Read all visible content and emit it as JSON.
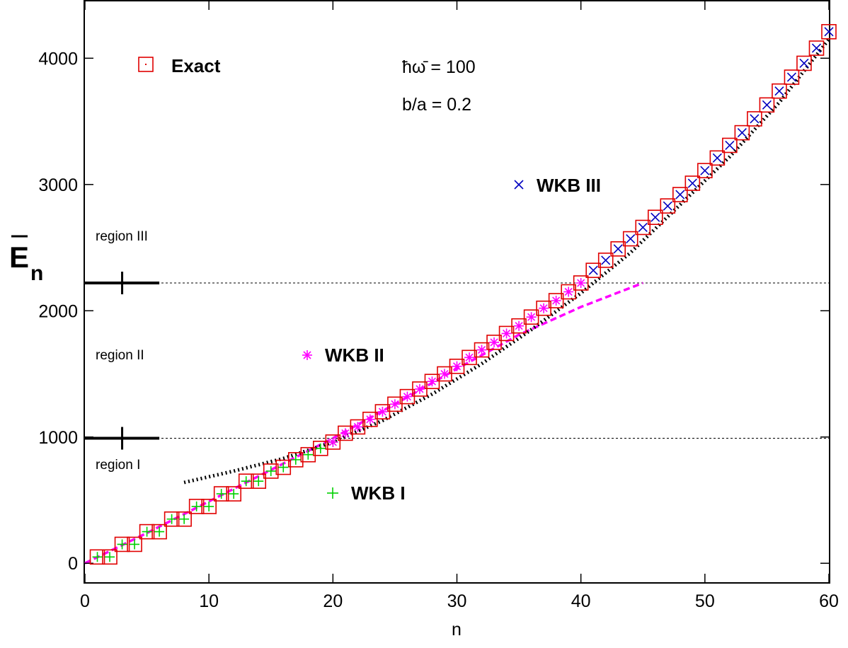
{
  "chart_data": {
    "type": "scatter",
    "title": "",
    "xlabel": "n",
    "ylabel": "E",
    "ylabel_subscript": "n",
    "xlim": [
      0,
      60
    ],
    "ylim": [
      -150,
      4450
    ],
    "x_ticks": [
      0,
      10,
      20,
      30,
      40,
      50,
      60
    ],
    "y_ticks": [
      0,
      1000,
      2000,
      3000,
      4000
    ],
    "x_tick_labels": [
      "0",
      "10",
      "20",
      "30",
      "40",
      "50",
      "60"
    ],
    "y_tick_labels": [
      "0",
      "1000",
      "2000",
      "3000",
      "4000"
    ],
    "grid": false,
    "legend_position": "inside",
    "parameters": [
      "ħω̄ = 100",
      "b/a = 0.2"
    ],
    "regions": {
      "boundaries": [
        990,
        2220
      ],
      "labels": [
        "region I",
        "region II",
        "region III"
      ],
      "label_y": [
        700,
        1600,
        2600
      ]
    },
    "series": [
      {
        "name": "Exact",
        "marker": "square",
        "color": "#e00000",
        "x": [
          1,
          2,
          3,
          4,
          5,
          6,
          7,
          8,
          9,
          10,
          11,
          12,
          13,
          14,
          15,
          16,
          17,
          18,
          19,
          20,
          21,
          22,
          23,
          24,
          25,
          26,
          27,
          28,
          29,
          30,
          31,
          32,
          33,
          34,
          35,
          36,
          37,
          38,
          39,
          40,
          41,
          42,
          43,
          44,
          45,
          46,
          47,
          48,
          49,
          50,
          51,
          52,
          53,
          54,
          55,
          56,
          57,
          58,
          59,
          60
        ],
        "y": [
          50,
          50,
          150,
          150,
          250,
          250,
          350,
          350,
          450,
          450,
          550,
          550,
          650,
          650,
          730,
          760,
          820,
          860,
          910,
          960,
          1030,
          1080,
          1140,
          1200,
          1260,
          1320,
          1380,
          1440,
          1500,
          1560,
          1630,
          1690,
          1750,
          1820,
          1880,
          1950,
          2020,
          2080,
          2150,
          2220,
          2320,
          2400,
          2490,
          2570,
          2660,
          2740,
          2830,
          2920,
          3010,
          3110,
          3210,
          3310,
          3410,
          3520,
          3630,
          3740,
          3850,
          3960,
          4080,
          4210
        ]
      },
      {
        "name": "WKB I",
        "marker": "plus",
        "color": "#00d000",
        "x": [
          1,
          2,
          3,
          4,
          5,
          6,
          7,
          8,
          9,
          10,
          11,
          12,
          13,
          14,
          15,
          16,
          17,
          18,
          19,
          20
        ],
        "y": [
          50,
          50,
          150,
          150,
          250,
          250,
          350,
          350,
          450,
          450,
          550,
          550,
          650,
          650,
          730,
          760,
          820,
          860,
          910,
          960
        ]
      },
      {
        "name": "WKB II",
        "marker": "star",
        "color": "#ff00ff",
        "x": [
          20,
          21,
          22,
          23,
          24,
          25,
          26,
          27,
          28,
          29,
          30,
          31,
          32,
          33,
          34,
          35,
          36,
          37,
          38,
          39,
          40
        ],
        "y": [
          960,
          1030,
          1080,
          1140,
          1200,
          1260,
          1320,
          1380,
          1440,
          1500,
          1560,
          1630,
          1690,
          1750,
          1820,
          1880,
          1950,
          2020,
          2080,
          2150,
          2220
        ]
      },
      {
        "name": "WKB III",
        "marker": "cross",
        "color": "#0000c0",
        "x": [
          41,
          42,
          43,
          44,
          45,
          46,
          47,
          48,
          49,
          50,
          51,
          52,
          53,
          54,
          55,
          56,
          57,
          58,
          59,
          60
        ],
        "y": [
          2320,
          2400,
          2490,
          2570,
          2660,
          2740,
          2830,
          2920,
          3010,
          3110,
          3210,
          3310,
          3410,
          3520,
          3630,
          3740,
          3850,
          3960,
          4080,
          4210
        ]
      }
    ],
    "curves": [
      {
        "style": "dashed",
        "color": "#ff00ff",
        "x": [
          0,
          5,
          10,
          15,
          20,
          25,
          30,
          35,
          40,
          45
        ],
        "y": [
          0,
          240,
          490,
          740,
          990,
          1260,
          1540,
          1810,
          2030,
          2220
        ]
      },
      {
        "style": "dotted",
        "color": "#000000",
        "x": [
          8,
          12,
          16,
          20,
          24,
          28,
          32,
          36,
          40,
          44,
          48,
          52,
          56,
          60
        ],
        "y": [
          640,
          730,
          830,
          960,
          1130,
          1340,
          1580,
          1850,
          2140,
          2460,
          2840,
          3220,
          3650,
          4150
        ]
      }
    ]
  }
}
